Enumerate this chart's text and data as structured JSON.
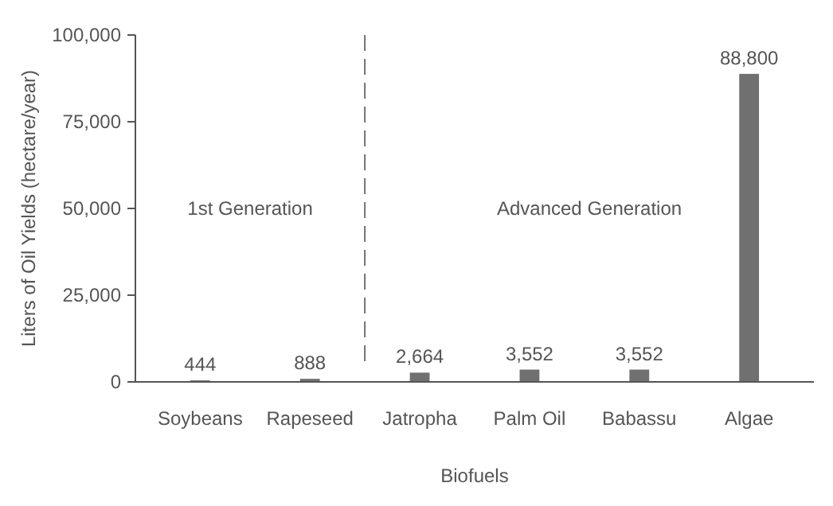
{
  "chart_data": {
    "type": "bar",
    "xlabel": "Biofuels",
    "ylabel": "Liters of Oil Yields (hectare/year)",
    "categories": [
      "Soybeans",
      "Rapeseed",
      "Jatropha",
      "Palm Oil",
      "Babassu",
      "Algae"
    ],
    "values": [
      444,
      888,
      2664,
      3552,
      3552,
      88800
    ],
    "color": "#707070",
    "ylim": [
      0,
      100000
    ],
    "yticks": [
      {
        "value": 0,
        "label": "0"
      },
      {
        "value": 25000,
        "label": "25,000"
      },
      {
        "value": 50000,
        "label": "50,000"
      },
      {
        "value": 75000,
        "label": "75,000"
      },
      {
        "value": 100000,
        "label": "100,000"
      }
    ],
    "value_labels": [
      "444",
      "888",
      "2,664",
      "3,552",
      "3,552",
      "88,800"
    ],
    "grid": false,
    "annotations": [
      "1st Generation",
      "Advanced Generation"
    ]
  }
}
